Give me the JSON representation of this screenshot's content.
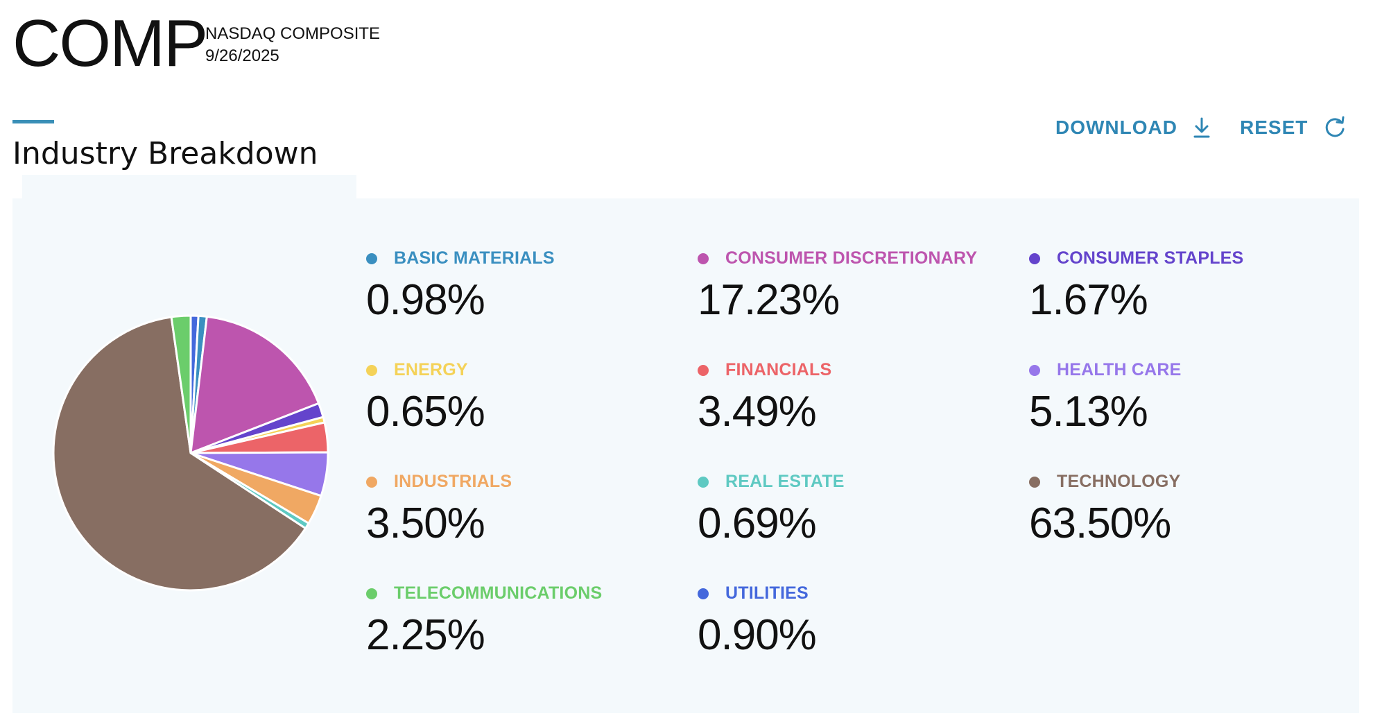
{
  "header": {
    "ticker": "COMP",
    "index_name": "NASDAQ COMPOSITE",
    "date": "9/26/2025"
  },
  "section": {
    "title": "Industry Breakdown"
  },
  "actions": {
    "download_label": "DOWNLOAD",
    "reset_label": "RESET",
    "accent_color": "#2e86b4"
  },
  "chart_data": {
    "type": "pie",
    "title": "",
    "categories": [
      "BASIC MATERIALS",
      "CONSUMER DISCRETIONARY",
      "CONSUMER STAPLES",
      "ENERGY",
      "FINANCIALS",
      "HEALTH CARE",
      "INDUSTRIALS",
      "REAL ESTATE",
      "TECHNOLOGY",
      "TELECOMMUNICATIONS",
      "UTILITIES"
    ],
    "values": [
      0.98,
      17.23,
      1.67,
      0.65,
      3.49,
      5.13,
      3.5,
      0.69,
      63.5,
      2.25,
      0.9
    ],
    "labels": [
      "0.98%",
      "17.23%",
      "1.67%",
      "0.65%",
      "3.49%",
      "5.13%",
      "3.50%",
      "0.69%",
      "63.50%",
      "2.25%",
      "0.90%"
    ],
    "colors": [
      "#3a8fc0",
      "#bd55ae",
      "#6444cc",
      "#f4d258",
      "#ec6468",
      "#9677ea",
      "#f0a863",
      "#5ec9c2",
      "#876e62",
      "#6bcd6b",
      "#4468dc"
    ],
    "legend_position": "right"
  }
}
